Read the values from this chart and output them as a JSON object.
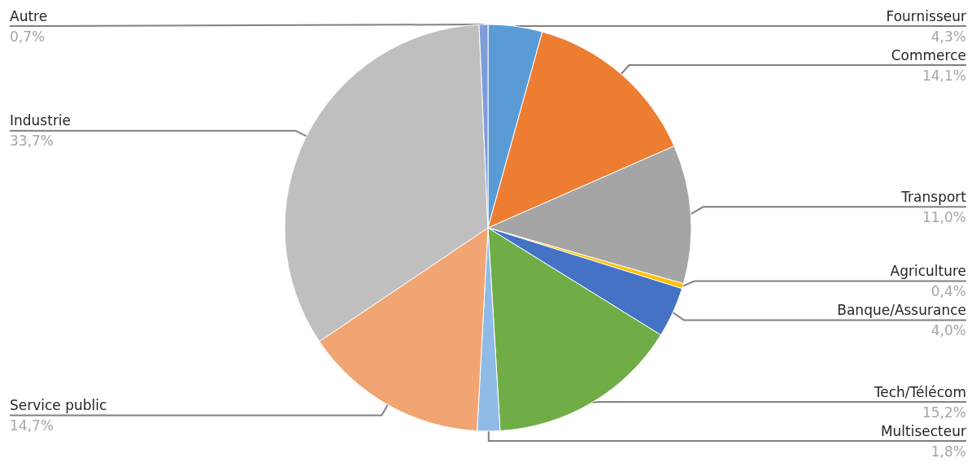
{
  "chart_data": {
    "type": "pie",
    "categories": [
      "Fournisseur",
      "Commerce",
      "Transport",
      "Agriculture",
      "Banque/Assurance",
      "Tech/Télécom",
      "Multisecteur",
      "Service public",
      "Industrie",
      "Autre"
    ],
    "values": [
      4.3,
      14.1,
      11.0,
      0.4,
      4.0,
      15.2,
      1.8,
      14.7,
      33.7,
      0.7
    ],
    "value_labels": [
      "4,3%",
      "14,1%",
      "11,0%",
      "0,4%",
      "4,0%",
      "15,2%",
      "1,8%",
      "14,7%",
      "33,7%",
      "0,7%"
    ],
    "colors": [
      "#5b9bd5",
      "#ed7d31",
      "#a5a5a5",
      "#ffc000",
      "#4472c4",
      "#70ad47",
      "#8fbbe6",
      "#f1a572",
      "#bfbfbf",
      "#7f9cd9"
    ]
  }
}
